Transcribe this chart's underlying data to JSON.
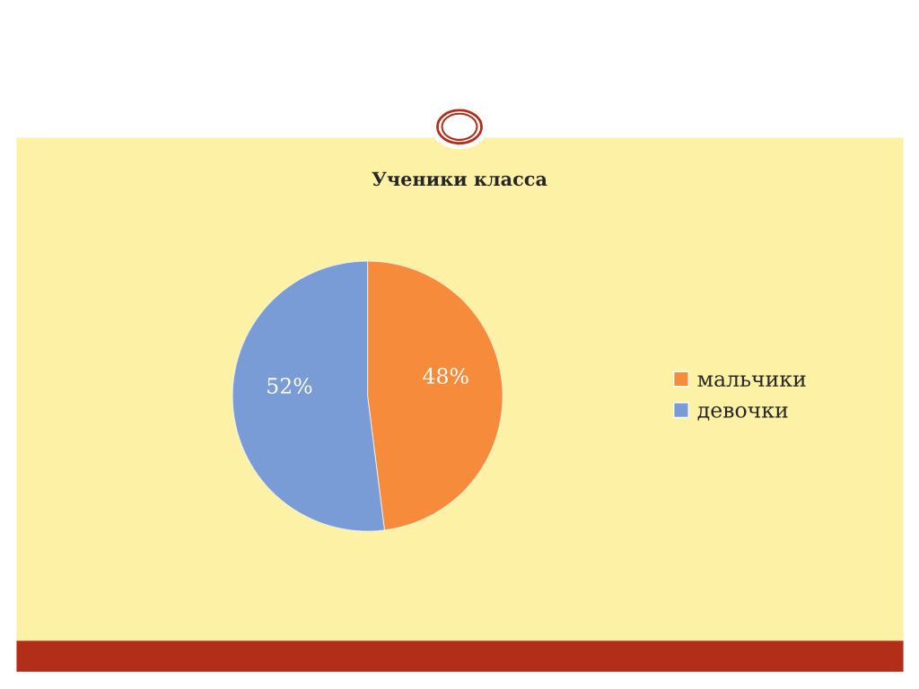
{
  "chart_data": {
    "type": "pie",
    "title": "Ученики класса",
    "categories": [
      "мальчики",
      "девочки"
    ],
    "values": [
      48,
      52
    ],
    "colors": [
      "#f68b3b",
      "#7a9cd6"
    ],
    "value_labels": [
      "48%",
      "52%"
    ],
    "legend": "right"
  }
}
